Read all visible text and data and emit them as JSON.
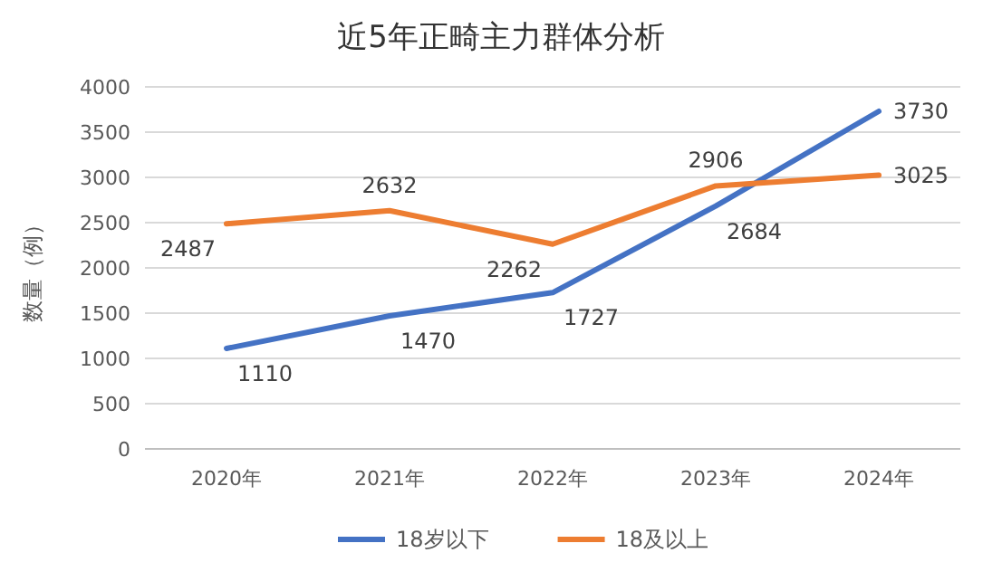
{
  "chart_data": {
    "type": "line",
    "title": "近5年正畸主力群体分析",
    "ylabel": "数量（例）",
    "categories": [
      "2020年",
      "2021年",
      "2022年",
      "2023年",
      "2024年"
    ],
    "series": [
      {
        "name": "18岁以下",
        "color": "#4472c4",
        "values": [
          1110,
          1470,
          1727,
          2684,
          3730
        ]
      },
      {
        "name": "18及以上",
        "color": "#ed7d31",
        "values": [
          2487,
          2632,
          2262,
          2906,
          3025
        ]
      }
    ],
    "ylim": [
      0,
      4000
    ],
    "yticks": [
      0,
      500,
      1000,
      1500,
      2000,
      2500,
      3000,
      3500,
      4000
    ],
    "grid": "y",
    "legend": "bottom",
    "data_labels": true,
    "marker": "none",
    "line_style": "solid"
  }
}
